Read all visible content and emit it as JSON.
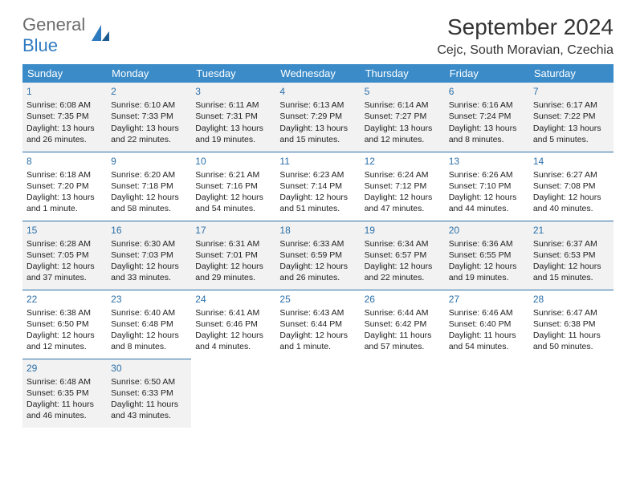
{
  "logo": {
    "part1": "General",
    "part2": "Blue"
  },
  "title": "September 2024",
  "location": "Cejc, South Moravian, Czechia",
  "colors": {
    "header_bg": "#3b8bc8",
    "header_text": "#ffffff",
    "border": "#2a6fa8",
    "alt_row_bg": "#f2f2f2",
    "daynum_color": "#2a6fa8",
    "logo_gray": "#6c6c6c",
    "logo_blue": "#2f7bbf"
  },
  "day_headers": [
    "Sunday",
    "Monday",
    "Tuesday",
    "Wednesday",
    "Thursday",
    "Friday",
    "Saturday"
  ],
  "weeks": [
    [
      {
        "n": "1",
        "sr": "Sunrise: 6:08 AM",
        "ss": "Sunset: 7:35 PM",
        "d1": "Daylight: 13 hours",
        "d2": "and 26 minutes."
      },
      {
        "n": "2",
        "sr": "Sunrise: 6:10 AM",
        "ss": "Sunset: 7:33 PM",
        "d1": "Daylight: 13 hours",
        "d2": "and 22 minutes."
      },
      {
        "n": "3",
        "sr": "Sunrise: 6:11 AM",
        "ss": "Sunset: 7:31 PM",
        "d1": "Daylight: 13 hours",
        "d2": "and 19 minutes."
      },
      {
        "n": "4",
        "sr": "Sunrise: 6:13 AM",
        "ss": "Sunset: 7:29 PM",
        "d1": "Daylight: 13 hours",
        "d2": "and 15 minutes."
      },
      {
        "n": "5",
        "sr": "Sunrise: 6:14 AM",
        "ss": "Sunset: 7:27 PM",
        "d1": "Daylight: 13 hours",
        "d2": "and 12 minutes."
      },
      {
        "n": "6",
        "sr": "Sunrise: 6:16 AM",
        "ss": "Sunset: 7:24 PM",
        "d1": "Daylight: 13 hours",
        "d2": "and 8 minutes."
      },
      {
        "n": "7",
        "sr": "Sunrise: 6:17 AM",
        "ss": "Sunset: 7:22 PM",
        "d1": "Daylight: 13 hours",
        "d2": "and 5 minutes."
      }
    ],
    [
      {
        "n": "8",
        "sr": "Sunrise: 6:18 AM",
        "ss": "Sunset: 7:20 PM",
        "d1": "Daylight: 13 hours",
        "d2": "and 1 minute."
      },
      {
        "n": "9",
        "sr": "Sunrise: 6:20 AM",
        "ss": "Sunset: 7:18 PM",
        "d1": "Daylight: 12 hours",
        "d2": "and 58 minutes."
      },
      {
        "n": "10",
        "sr": "Sunrise: 6:21 AM",
        "ss": "Sunset: 7:16 PM",
        "d1": "Daylight: 12 hours",
        "d2": "and 54 minutes."
      },
      {
        "n": "11",
        "sr": "Sunrise: 6:23 AM",
        "ss": "Sunset: 7:14 PM",
        "d1": "Daylight: 12 hours",
        "d2": "and 51 minutes."
      },
      {
        "n": "12",
        "sr": "Sunrise: 6:24 AM",
        "ss": "Sunset: 7:12 PM",
        "d1": "Daylight: 12 hours",
        "d2": "and 47 minutes."
      },
      {
        "n": "13",
        "sr": "Sunrise: 6:26 AM",
        "ss": "Sunset: 7:10 PM",
        "d1": "Daylight: 12 hours",
        "d2": "and 44 minutes."
      },
      {
        "n": "14",
        "sr": "Sunrise: 6:27 AM",
        "ss": "Sunset: 7:08 PM",
        "d1": "Daylight: 12 hours",
        "d2": "and 40 minutes."
      }
    ],
    [
      {
        "n": "15",
        "sr": "Sunrise: 6:28 AM",
        "ss": "Sunset: 7:05 PM",
        "d1": "Daylight: 12 hours",
        "d2": "and 37 minutes."
      },
      {
        "n": "16",
        "sr": "Sunrise: 6:30 AM",
        "ss": "Sunset: 7:03 PM",
        "d1": "Daylight: 12 hours",
        "d2": "and 33 minutes."
      },
      {
        "n": "17",
        "sr": "Sunrise: 6:31 AM",
        "ss": "Sunset: 7:01 PM",
        "d1": "Daylight: 12 hours",
        "d2": "and 29 minutes."
      },
      {
        "n": "18",
        "sr": "Sunrise: 6:33 AM",
        "ss": "Sunset: 6:59 PM",
        "d1": "Daylight: 12 hours",
        "d2": "and 26 minutes."
      },
      {
        "n": "19",
        "sr": "Sunrise: 6:34 AM",
        "ss": "Sunset: 6:57 PM",
        "d1": "Daylight: 12 hours",
        "d2": "and 22 minutes."
      },
      {
        "n": "20",
        "sr": "Sunrise: 6:36 AM",
        "ss": "Sunset: 6:55 PM",
        "d1": "Daylight: 12 hours",
        "d2": "and 19 minutes."
      },
      {
        "n": "21",
        "sr": "Sunrise: 6:37 AM",
        "ss": "Sunset: 6:53 PM",
        "d1": "Daylight: 12 hours",
        "d2": "and 15 minutes."
      }
    ],
    [
      {
        "n": "22",
        "sr": "Sunrise: 6:38 AM",
        "ss": "Sunset: 6:50 PM",
        "d1": "Daylight: 12 hours",
        "d2": "and 12 minutes."
      },
      {
        "n": "23",
        "sr": "Sunrise: 6:40 AM",
        "ss": "Sunset: 6:48 PM",
        "d1": "Daylight: 12 hours",
        "d2": "and 8 minutes."
      },
      {
        "n": "24",
        "sr": "Sunrise: 6:41 AM",
        "ss": "Sunset: 6:46 PM",
        "d1": "Daylight: 12 hours",
        "d2": "and 4 minutes."
      },
      {
        "n": "25",
        "sr": "Sunrise: 6:43 AM",
        "ss": "Sunset: 6:44 PM",
        "d1": "Daylight: 12 hours",
        "d2": "and 1 minute."
      },
      {
        "n": "26",
        "sr": "Sunrise: 6:44 AM",
        "ss": "Sunset: 6:42 PM",
        "d1": "Daylight: 11 hours",
        "d2": "and 57 minutes."
      },
      {
        "n": "27",
        "sr": "Sunrise: 6:46 AM",
        "ss": "Sunset: 6:40 PM",
        "d1": "Daylight: 11 hours",
        "d2": "and 54 minutes."
      },
      {
        "n": "28",
        "sr": "Sunrise: 6:47 AM",
        "ss": "Sunset: 6:38 PM",
        "d1": "Daylight: 11 hours",
        "d2": "and 50 minutes."
      }
    ],
    [
      {
        "n": "29",
        "sr": "Sunrise: 6:48 AM",
        "ss": "Sunset: 6:35 PM",
        "d1": "Daylight: 11 hours",
        "d2": "and 46 minutes."
      },
      {
        "n": "30",
        "sr": "Sunrise: 6:50 AM",
        "ss": "Sunset: 6:33 PM",
        "d1": "Daylight: 11 hours",
        "d2": "and 43 minutes."
      },
      null,
      null,
      null,
      null,
      null
    ]
  ]
}
